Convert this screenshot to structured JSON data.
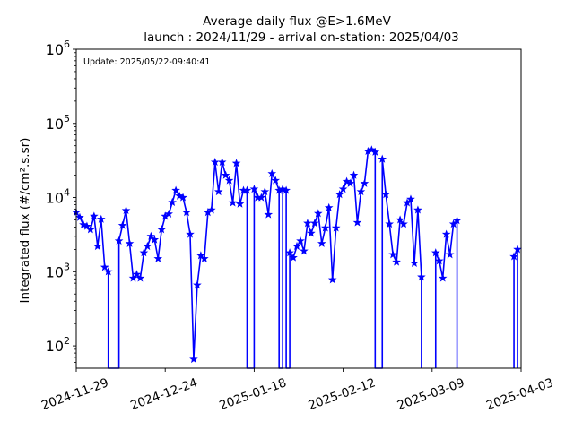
{
  "chart_data": {
    "type": "line",
    "title": "Average daily flux @E>1.6MeV",
    "subtitle": "launch : 2024/11/29 - arrival on-station: 2025/04/03",
    "ylabel": "Integrated flux (#/cm².s.sr)",
    "xlabel": "",
    "annotation": "Update: 2025/05/22-09:40:41",
    "y_scale": "log",
    "ylim": [
      50,
      1000000
    ],
    "xlim": [
      "2024-11-29",
      "2025-04-03"
    ],
    "x_ticks": [
      "2024-11-29",
      "2024-12-24",
      "2025-01-18",
      "2025-02-12",
      "2025-03-09",
      "2025-04-03"
    ],
    "y_ticks": [
      {
        "value": 100,
        "base": "10",
        "exp": "2"
      },
      {
        "value": 1000,
        "base": "10",
        "exp": "3"
      },
      {
        "value": 10000,
        "base": "10",
        "exp": "4"
      },
      {
        "value": 100000,
        "base": "10",
        "exp": "5"
      },
      {
        "value": 1000000,
        "base": "10",
        "exp": "6"
      }
    ],
    "grid": false,
    "color": "#0000ff",
    "marker": "star",
    "series": [
      {
        "points": [
          [
            "2024-11-29",
            6300
          ],
          [
            "2024-11-30",
            5400
          ],
          [
            "2024-12-01",
            4300
          ],
          [
            "2024-12-02",
            4100
          ],
          [
            "2024-12-03",
            3700
          ],
          [
            "2024-12-04",
            5600
          ],
          [
            "2024-12-05",
            2200
          ],
          [
            "2024-12-06",
            5100
          ],
          [
            "2024-12-07",
            1150
          ],
          [
            "2024-12-08",
            1000
          ],
          [
            "2024-12-08",
            40
          ],
          [
            "2024-12-11",
            40
          ],
          [
            "2024-12-11",
            2600
          ],
          [
            "2024-12-12",
            4200
          ],
          [
            "2024-12-13",
            6700
          ],
          [
            "2024-12-14",
            2400
          ],
          [
            "2024-12-15",
            820
          ],
          [
            "2024-12-16",
            920
          ],
          [
            "2024-12-17",
            820
          ],
          [
            "2024-12-18",
            1800
          ],
          [
            "2024-12-19",
            2200
          ],
          [
            "2024-12-20",
            3000
          ],
          [
            "2024-12-21",
            2700
          ],
          [
            "2024-12-22",
            1500
          ],
          [
            "2024-12-23",
            3700
          ],
          [
            "2024-12-24",
            5600
          ],
          [
            "2024-12-25",
            6000
          ],
          [
            "2024-12-26",
            8600
          ],
          [
            "2024-12-27",
            12500
          ],
          [
            "2024-12-28",
            10500
          ],
          [
            "2024-12-29",
            10000
          ],
          [
            "2024-12-30",
            6300
          ],
          [
            "2024-12-31",
            3200
          ],
          [
            "2025-01-01",
            66
          ],
          [
            "2025-01-02",
            660
          ],
          [
            "2025-01-03",
            1650
          ],
          [
            "2025-01-04",
            1500
          ],
          [
            "2025-01-05",
            6300
          ],
          [
            "2025-01-06",
            6800
          ],
          [
            "2025-01-07",
            30000
          ],
          [
            "2025-01-08",
            12000
          ],
          [
            "2025-01-09",
            30000
          ],
          [
            "2025-01-10",
            20000
          ],
          [
            "2025-01-11",
            17000
          ],
          [
            "2025-01-12",
            8500
          ],
          [
            "2025-01-13",
            29000
          ],
          [
            "2025-01-14",
            8200
          ],
          [
            "2025-01-15",
            12500
          ],
          [
            "2025-01-16",
            12500
          ],
          [
            "2025-01-16",
            40
          ],
          [
            "2025-01-18",
            40
          ],
          [
            "2025-01-18",
            13000
          ],
          [
            "2025-01-19",
            10000
          ],
          [
            "2025-01-20",
            10000
          ],
          [
            "2025-01-21",
            12000
          ],
          [
            "2025-01-22",
            5900
          ],
          [
            "2025-01-23",
            21000
          ],
          [
            "2025-01-24",
            17000
          ],
          [
            "2025-01-25",
            12500
          ],
          [
            "2025-01-25",
            40
          ],
          [
            "2025-01-26",
            40
          ],
          [
            "2025-01-26",
            13000
          ],
          [
            "2025-01-27",
            12500
          ],
          [
            "2025-01-27",
            40
          ],
          [
            "2025-01-28",
            40
          ],
          [
            "2025-01-28",
            1800
          ],
          [
            "2025-01-29",
            1550
          ],
          [
            "2025-01-30",
            2200
          ],
          [
            "2025-01-31",
            2600
          ],
          [
            "2025-02-01",
            1900
          ],
          [
            "2025-02-02",
            4500
          ],
          [
            "2025-02-03",
            3300
          ],
          [
            "2025-02-04",
            4500
          ],
          [
            "2025-02-05",
            6100
          ],
          [
            "2025-02-06",
            2400
          ],
          [
            "2025-02-07",
            3900
          ],
          [
            "2025-02-08",
            7300
          ],
          [
            "2025-02-09",
            780
          ],
          [
            "2025-02-10",
            3900
          ],
          [
            "2025-02-11",
            11000
          ],
          [
            "2025-02-12",
            13000
          ],
          [
            "2025-02-13",
            16500
          ],
          [
            "2025-02-14",
            15500
          ],
          [
            "2025-02-15",
            20000
          ],
          [
            "2025-02-16",
            4600
          ],
          [
            "2025-02-17",
            12000
          ],
          [
            "2025-02-18",
            15500
          ],
          [
            "2025-02-19",
            42000
          ],
          [
            "2025-02-20",
            44000
          ],
          [
            "2025-02-21",
            41000
          ],
          [
            "2025-02-21",
            40
          ],
          [
            "2025-02-23",
            40
          ],
          [
            "2025-02-23",
            33000
          ],
          [
            "2025-02-24",
            11000
          ],
          [
            "2025-02-25",
            4400
          ],
          [
            "2025-02-26",
            1700
          ],
          [
            "2025-02-27",
            1350
          ],
          [
            "2025-02-28",
            5000
          ],
          [
            "2025-03-01",
            4400
          ],
          [
            "2025-03-02",
            8500
          ],
          [
            "2025-03-03",
            9500
          ],
          [
            "2025-03-04",
            1300
          ],
          [
            "2025-03-05",
            6800
          ],
          [
            "2025-03-06",
            850
          ],
          [
            "2025-03-06",
            40
          ]
        ]
      },
      {
        "points": [
          [
            "2025-03-10",
            40
          ],
          [
            "2025-03-10",
            1800
          ],
          [
            "2025-03-11",
            1400
          ],
          [
            "2025-03-12",
            820
          ],
          [
            "2025-03-13",
            3200
          ],
          [
            "2025-03-14",
            1700
          ],
          [
            "2025-03-15",
            4400
          ],
          [
            "2025-03-16",
            4900
          ],
          [
            "2025-03-16",
            40
          ]
        ]
      },
      {
        "points": [
          [
            "2025-04-01",
            40
          ],
          [
            "2025-04-01",
            1600
          ],
          [
            "2025-04-02",
            2000
          ],
          [
            "2025-04-02",
            40
          ]
        ]
      }
    ]
  }
}
